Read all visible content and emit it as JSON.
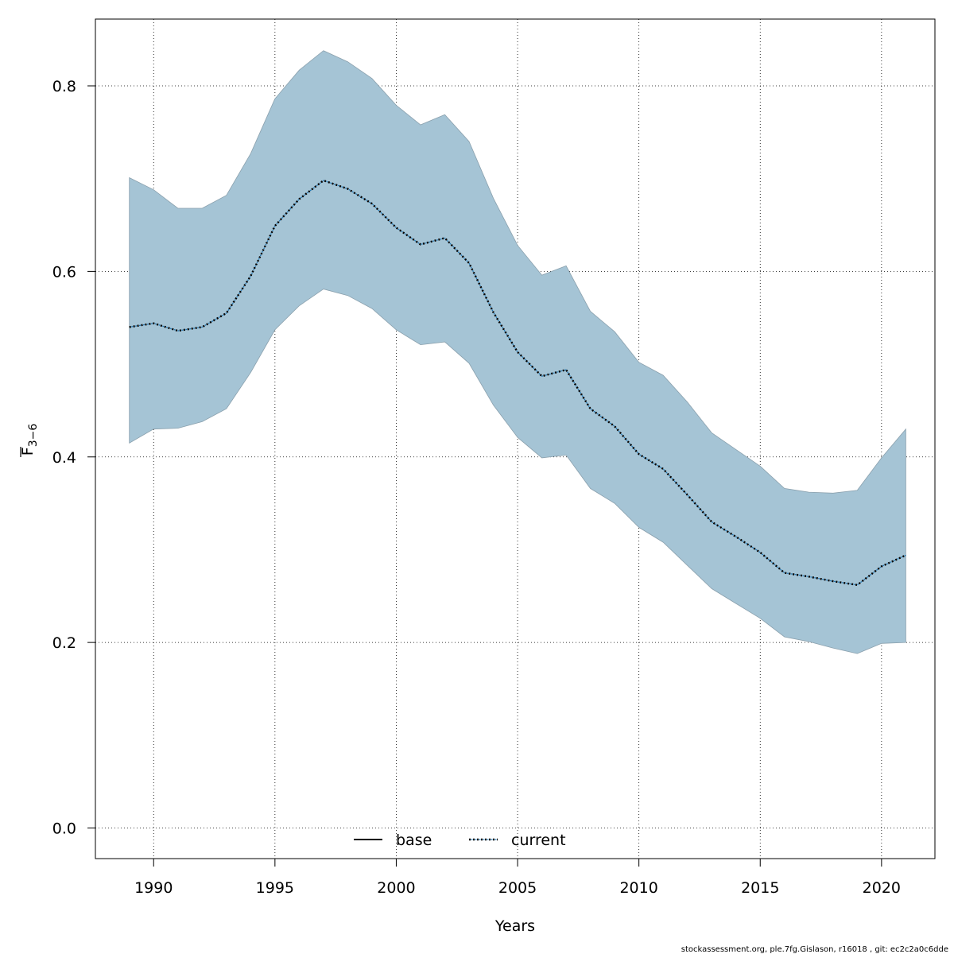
{
  "chart_data": {
    "type": "line",
    "xlabel": "Years",
    "ylabel_main": "F",
    "ylabel_sub": "3−6",
    "xlim": [
      1987.6,
      2022.2
    ],
    "ylim": [
      -0.033,
      0.872
    ],
    "x_ticks": [
      1990,
      1995,
      2000,
      2005,
      2010,
      2015,
      2020
    ],
    "y_ticks": [
      0.0,
      0.2,
      0.4,
      0.6,
      0.8
    ],
    "y_tick_labels": [
      "0.0",
      "0.2",
      "0.4",
      "0.6",
      "0.8"
    ],
    "grid": true,
    "x": [
      1989,
      1990,
      1991,
      1992,
      1993,
      1994,
      1995,
      1996,
      1997,
      1998,
      1999,
      2000,
      2001,
      2002,
      2003,
      2004,
      2005,
      2006,
      2007,
      2008,
      2009,
      2010,
      2011,
      2012,
      2013,
      2014,
      2015,
      2016,
      2017,
      2018,
      2019,
      2020,
      2021
    ],
    "series": [
      {
        "name": "current",
        "style": "dotted",
        "values": [
          0.54,
          0.544,
          0.536,
          0.54,
          0.555,
          0.595,
          0.649,
          0.678,
          0.698,
          0.689,
          0.673,
          0.647,
          0.629,
          0.636,
          0.609,
          0.556,
          0.513,
          0.487,
          0.494,
          0.452,
          0.433,
          0.403,
          0.387,
          0.359,
          0.33,
          0.314,
          0.297,
          0.275,
          0.271,
          0.266,
          0.262,
          0.282,
          0.294
        ]
      }
    ],
    "band": {
      "lower": [
        0.415,
        0.43,
        0.431,
        0.438,
        0.452,
        0.491,
        0.537,
        0.563,
        0.581,
        0.574,
        0.56,
        0.537,
        0.521,
        0.524,
        0.501,
        0.456,
        0.421,
        0.399,
        0.402,
        0.366,
        0.35,
        0.324,
        0.308,
        0.283,
        0.258,
        0.242,
        0.226,
        0.206,
        0.201,
        0.194,
        0.188,
        0.199,
        0.2
      ],
      "upper": [
        0.701,
        0.688,
        0.668,
        0.668,
        0.682,
        0.727,
        0.786,
        0.817,
        0.838,
        0.826,
        0.808,
        0.779,
        0.758,
        0.769,
        0.74,
        0.679,
        0.628,
        0.596,
        0.606,
        0.557,
        0.535,
        0.502,
        0.488,
        0.459,
        0.426,
        0.408,
        0.39,
        0.366,
        0.362,
        0.361,
        0.364,
        0.399,
        0.43
      ]
    },
    "legend": {
      "placement": "bottom-center",
      "entries": [
        {
          "label": "base",
          "style": "solid"
        },
        {
          "label": "current",
          "style": "dotted"
        }
      ]
    },
    "colors": {
      "band_fill": "#a5c4d5",
      "band_stroke": "#8aa0ad",
      "line_outer": "#000000",
      "line_inner": "#1f77b4"
    }
  },
  "footer": "stockassessment.org, ple.7fg.Gislason, r16018 , git: ec2c2a0c6dde"
}
